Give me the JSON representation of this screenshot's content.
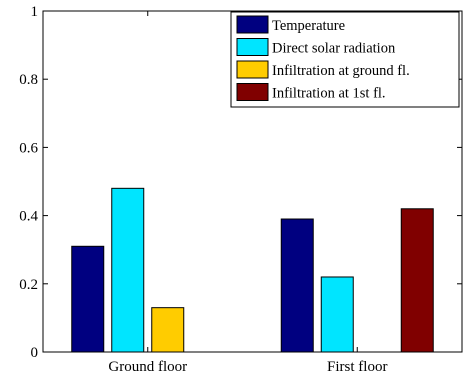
{
  "chart_data": {
    "type": "bar",
    "categories": [
      "Ground floor",
      "First floor"
    ],
    "series": [
      {
        "name": "Temperature",
        "color": "#000080",
        "values": [
          0.31,
          0.39
        ]
      },
      {
        "name": "Direct solar radiation",
        "color": "#00e5ff",
        "values": [
          0.48,
          0.22
        ]
      },
      {
        "name": "Infiltration at ground fl.",
        "color": "#ffcc00",
        "values": [
          0.13,
          0
        ]
      },
      {
        "name": "Infiltration at 1st fl.",
        "color": "#800000",
        "values": [
          0,
          0.42
        ]
      }
    ],
    "ylim": [
      0,
      1
    ],
    "yticks": [
      0,
      0.2,
      0.4,
      0.6,
      0.8,
      1
    ],
    "ytick_labels": [
      "0",
      "0.2",
      "0.4",
      "0.6",
      "0.8",
      "1"
    ],
    "title": "",
    "xlabel": "",
    "ylabel": "",
    "legend_position": "top-right",
    "grid": false
  }
}
